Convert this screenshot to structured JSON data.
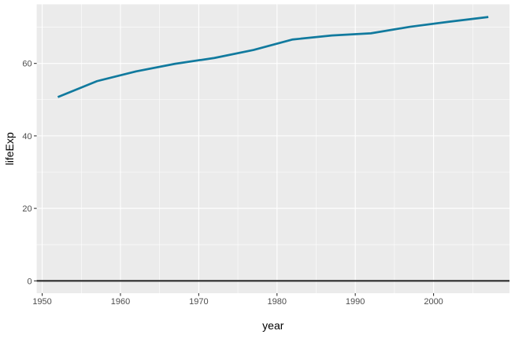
{
  "chart_data": {
    "type": "line",
    "xlabel": "year",
    "ylabel": "lifeExp",
    "xlim": [
      1949.3,
      2009.7
    ],
    "ylim": [
      -3.4,
      76.3
    ],
    "x_major_ticks": [
      1950,
      1960,
      1970,
      1980,
      1990,
      2000
    ],
    "x_minor_ticks": [
      1955,
      1965,
      1975,
      1985,
      1995,
      2005
    ],
    "y_major_ticks": [
      0,
      20,
      40,
      60
    ],
    "y_minor_ticks": [
      10,
      30,
      50,
      70
    ],
    "grid": true,
    "hline": 0,
    "colors": {
      "panel": "#ebebeb",
      "grid": "#ffffff",
      "line": "#117a9e",
      "hline": "#2b2b2b"
    },
    "series": [
      {
        "x": [
          1952,
          1957,
          1962,
          1967,
          1972,
          1977,
          1982,
          1987,
          1992,
          1997,
          2002,
          2007
        ],
        "values": [
          50.7,
          55.1,
          57.8,
          59.9,
          61.5,
          63.7,
          66.6,
          67.7,
          68.3,
          70.1,
          71.5,
          72.8
        ]
      }
    ]
  }
}
